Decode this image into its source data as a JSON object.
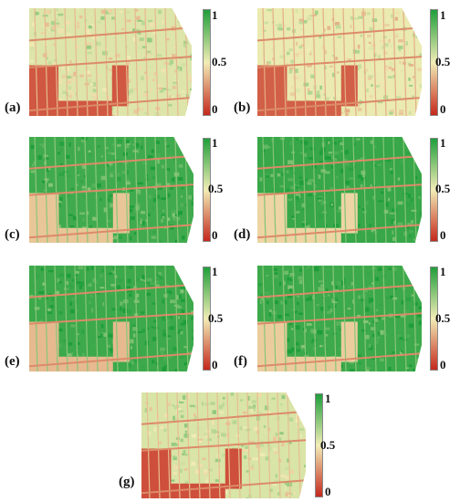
{
  "figure": {
    "colorbar": {
      "max_label": "1",
      "mid_label": "0.5",
      "min_label": "0",
      "colors": {
        "high": "#1e9e3a",
        "mid": "#f2edb6",
        "low": "#c5281c"
      }
    },
    "panels": [
      {
        "label": "(a)",
        "field_level": 0.55,
        "block_level": 0.12
      },
      {
        "label": "(b)",
        "field_level": 0.52,
        "block_level": 0.14
      },
      {
        "label": "(c)",
        "field_level": 0.92,
        "block_level": 0.28
      },
      {
        "label": "(d)",
        "field_level": 0.94,
        "block_level": 0.32
      },
      {
        "label": "(e)",
        "field_level": 0.93,
        "block_level": 0.25
      },
      {
        "label": "(f)",
        "field_level": 0.93,
        "block_level": 0.3
      },
      {
        "label": "(g)",
        "field_level": 0.56,
        "block_level": 0.1
      }
    ]
  }
}
